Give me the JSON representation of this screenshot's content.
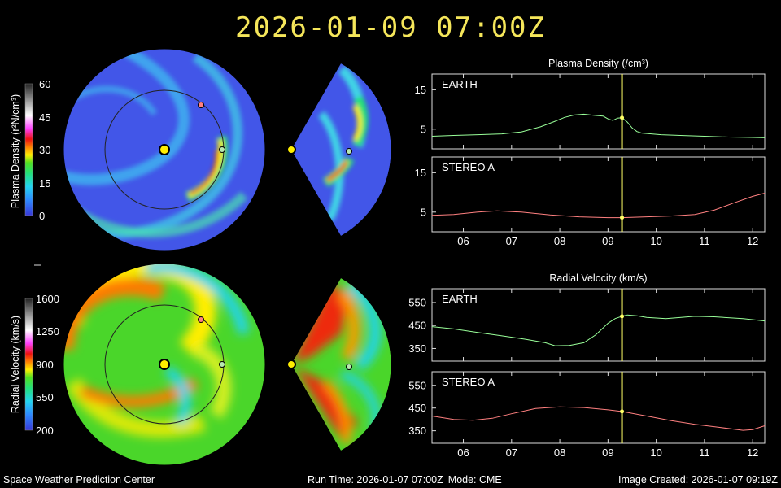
{
  "header": {
    "timestamp": "2026-01-09  07:00Z"
  },
  "footer": {
    "left": "Space Weather Prediction Center",
    "run_time": "Run Time: 2026-01-07 07:00Z",
    "mode": "Mode: CME",
    "created": "Image Created: 2026-01-07 09:19Z"
  },
  "colorbars": {
    "density": {
      "label": "Plasma Density (r²N/cm³)",
      "ticks": [
        "60",
        "45",
        "30",
        "15",
        "0"
      ]
    },
    "velocity": {
      "label": "Radial Velocity (km/s)",
      "ticks": [
        "1600",
        "1250",
        "900",
        "550",
        "200"
      ]
    }
  },
  "marker_colors": {
    "sun": "#ffee00",
    "earth": "#b8e8b0",
    "stereo_a": "#ff8080",
    "time_line": "#ffff66"
  },
  "chart_data": [
    {
      "type": "line",
      "title": "Plasma Density (/cm³)",
      "panel": "EARTH",
      "x_ticks": [
        "06",
        "07",
        "08",
        "09",
        "10",
        "11",
        "12"
      ],
      "x_range": [
        5.35,
        12.25
      ],
      "y_ticks": [
        15,
        5
      ],
      "ylim": [
        0,
        19
      ],
      "current_x": 9.29,
      "line_color": "#99ff99",
      "x": [
        5.35,
        5.8,
        6.3,
        6.8,
        7.2,
        7.6,
        7.9,
        8.1,
        8.3,
        8.5,
        8.7,
        8.9,
        9.0,
        9.1,
        9.2,
        9.29,
        9.4,
        9.5,
        9.6,
        9.7,
        9.8,
        9.9,
        10.1,
        10.5,
        11.0,
        11.5,
        12.0,
        12.25
      ],
      "y": [
        3.2,
        3.4,
        3.6,
        3.8,
        4.3,
        5.6,
        7.0,
        8.0,
        8.6,
        8.8,
        8.5,
        8.3,
        7.6,
        7.2,
        7.8,
        7.9,
        6.8,
        5.3,
        4.4,
        4.0,
        3.9,
        3.8,
        3.6,
        3.4,
        3.2,
        3.0,
        2.9,
        2.8
      ]
    },
    {
      "type": "line",
      "panel": "STEREO A",
      "x_ticks": [
        "06",
        "07",
        "08",
        "09",
        "10",
        "11",
        "12"
      ],
      "x_range": [
        5.35,
        12.25
      ],
      "y_ticks": [
        15,
        5
      ],
      "ylim": [
        0,
        19
      ],
      "current_x": 9.29,
      "line_color": "#ff8080",
      "x": [
        5.35,
        5.8,
        6.3,
        6.7,
        7.2,
        7.8,
        8.4,
        9.0,
        9.29,
        9.8,
        10.3,
        10.8,
        11.2,
        11.6,
        12.0,
        12.25
      ],
      "y": [
        4.2,
        4.4,
        5.0,
        5.3,
        5.0,
        4.3,
        3.8,
        3.6,
        3.6,
        3.8,
        4.0,
        4.4,
        5.5,
        7.3,
        9.0,
        9.8
      ]
    },
    {
      "type": "line",
      "title": "Radial Velocity (km/s)",
      "panel": "EARTH",
      "x_ticks": [
        "06",
        "07",
        "08",
        "09",
        "10",
        "11",
        "12"
      ],
      "x_range": [
        5.35,
        12.25
      ],
      "y_ticks": [
        550,
        450,
        350
      ],
      "ylim": [
        295,
        610
      ],
      "current_x": 9.29,
      "line_color": "#99ff99",
      "x": [
        5.35,
        5.8,
        6.3,
        6.8,
        7.3,
        7.7,
        7.9,
        8.2,
        8.5,
        8.75,
        9.0,
        9.15,
        9.29,
        9.4,
        9.6,
        9.8,
        10.2,
        10.8,
        11.2,
        11.8,
        12.25
      ],
      "y": [
        445,
        435,
        420,
        405,
        390,
        375,
        362,
        363,
        375,
        410,
        460,
        480,
        490,
        496,
        492,
        485,
        480,
        490,
        488,
        480,
        470
      ]
    },
    {
      "type": "line",
      "panel": "STEREO A",
      "x_ticks": [
        "06",
        "07",
        "08",
        "09",
        "10",
        "11",
        "12"
      ],
      "x_range": [
        5.35,
        12.25
      ],
      "y_ticks": [
        550,
        450,
        350
      ],
      "ylim": [
        295,
        610
      ],
      "current_x": 9.29,
      "line_color": "#ff8080",
      "x": [
        5.35,
        5.8,
        6.2,
        6.6,
        7.0,
        7.5,
        8.0,
        8.5,
        9.0,
        9.29,
        9.8,
        10.3,
        10.8,
        11.3,
        11.8,
        12.0,
        12.25
      ],
      "y": [
        415,
        400,
        396,
        405,
        425,
        448,
        455,
        452,
        442,
        435,
        415,
        395,
        378,
        365,
        352,
        355,
        372
      ]
    }
  ]
}
